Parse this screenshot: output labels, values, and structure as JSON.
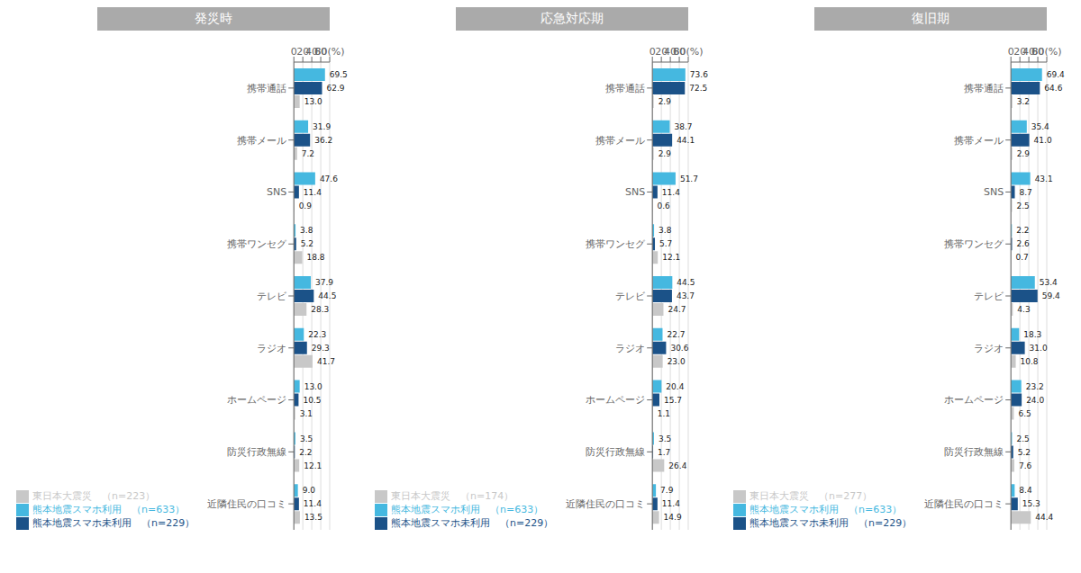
{
  "chart_data": [
    {
      "type": "bar",
      "title": "発災時",
      "orientation": "horizontal",
      "categories": [
        "携帯通話",
        "携帯メール",
        "SNS",
        "携帯ワンセグ",
        "テレビ",
        "ラジオ",
        "ホームページ",
        "防災行政無線",
        "近隣住民の口コミ"
      ],
      "series": [
        {
          "name": "熊本地震スマホ利用　（n=633）",
          "color": "#45B8E0",
          "values": [
            69.5,
            31.9,
            47.6,
            3.8,
            37.9,
            22.3,
            13.0,
            3.5,
            9.0
          ],
          "value_labels": [
            "69.5",
            "31.9",
            "47.6",
            "3.8",
            "37.9",
            "22.3",
            "13.0",
            "3.5",
            "9.0"
          ]
        },
        {
          "name": "熊本地震スマホ未利用　（n=229）",
          "color": "#1B5288",
          "values": [
            62.9,
            36.2,
            11.4,
            5.2,
            44.5,
            29.3,
            10.5,
            2.2,
            11.4
          ],
          "value_labels": [
            "62.9",
            "36.2",
            "11.4",
            "5.2",
            "44.5",
            "29.3",
            "10.5",
            "2.2",
            "11.4"
          ]
        },
        {
          "name": "東日本大震災　（n=223）",
          "color": "#C8C8C8",
          "values": [
            13.0,
            7.2,
            0.9,
            18.8,
            28.3,
            41.7,
            3.1,
            12.1,
            13.5
          ],
          "value_labels": [
            "13.0",
            "7.2",
            "0.9",
            "18.8",
            "28.3",
            "41.7",
            "3.1",
            "12.1",
            "13.5"
          ]
        }
      ],
      "xlim": [
        0,
        80
      ],
      "xticks": [
        0,
        20,
        40,
        60,
        {
          "value": 80,
          "label": "80(%)"
        }
      ],
      "grid": true,
      "data_labels": true,
      "legend": "bottom"
    },
    {
      "type": "bar",
      "title": "応急対応期",
      "orientation": "horizontal",
      "categories": [
        "携帯通話",
        "携帯メール",
        "SNS",
        "携帯ワンセグ",
        "テレビ",
        "ラジオ",
        "ホームページ",
        "防災行政無線",
        "近隣住民の口コミ"
      ],
      "series": [
        {
          "name": "熊本地震スマホ利用　（n=633）",
          "color": "#45B8E0",
          "values": [
            73.6,
            38.7,
            51.7,
            3.8,
            44.5,
            22.7,
            20.4,
            3.5,
            7.9
          ],
          "value_labels": [
            "73.6",
            "38.7",
            "51.7",
            "3.8",
            "44.5",
            "22.7",
            "20.4",
            "3.5",
            "7.9"
          ]
        },
        {
          "name": "熊本地震スマホ未利用　（n=229）",
          "color": "#1B5288",
          "values": [
            72.5,
            44.1,
            11.4,
            5.7,
            43.7,
            30.6,
            15.7,
            1.7,
            11.4
          ],
          "value_labels": [
            "72.5",
            "44.1",
            "11.4",
            "5.7",
            "43.7",
            "30.6",
            "15.7",
            "1.7",
            "11.4"
          ]
        },
        {
          "name": "東日本大震災　（n=174）",
          "color": "#C8C8C8",
          "values": [
            2.9,
            2.9,
            0.6,
            12.1,
            24.7,
            23.0,
            1.1,
            26.4,
            14.9
          ],
          "value_labels": [
            "2.9",
            "2.9",
            "0.6",
            "12.1",
            "24.7",
            "23.0",
            "1.1",
            "26.4",
            "14.9"
          ]
        }
      ],
      "xlim": [
        0,
        80
      ],
      "xticks": [
        0,
        20,
        40,
        60,
        {
          "value": 80,
          "label": "80(%)"
        }
      ],
      "grid": true,
      "data_labels": true,
      "legend": "bottom"
    },
    {
      "type": "bar",
      "title": "復旧期",
      "orientation": "horizontal",
      "categories": [
        "携帯通話",
        "携帯メール",
        "SNS",
        "携帯ワンセグ",
        "テレビ",
        "ラジオ",
        "ホームページ",
        "防災行政無線",
        "近隣住民の口コミ"
      ],
      "series": [
        {
          "name": "熊本地震スマホ利用　（n=633）",
          "color": "#45B8E0",
          "values": [
            69.4,
            35.4,
            43.1,
            2.2,
            53.4,
            18.3,
            23.2,
            2.5,
            8.4
          ],
          "value_labels": [
            "69.4",
            "35.4",
            "43.1",
            "2.2",
            "53.4",
            "18.3",
            "23.2",
            "2.5",
            "8.4"
          ]
        },
        {
          "name": "熊本地震スマホ未利用　（n=229）",
          "color": "#1B5288",
          "values": [
            64.6,
            41.0,
            8.7,
            2.6,
            59.4,
            31.0,
            24.0,
            5.2,
            15.3
          ],
          "value_labels": [
            "64.6",
            "41.0",
            "8.7",
            "2.6",
            "59.4",
            "31.0",
            "24.0",
            "5.2",
            "15.3"
          ]
        },
        {
          "name": "東日本大震災　（n=277）",
          "color": "#C8C8C8",
          "values": [
            3.2,
            2.9,
            2.5,
            0.7,
            4.3,
            10.8,
            6.5,
            7.6,
            44.4
          ],
          "value_labels": [
            "3.2",
            "2.9",
            "2.5",
            "0.7",
            "4.3",
            "10.8",
            "6.5",
            "7.6",
            "44.4"
          ]
        }
      ],
      "xlim": [
        0,
        80
      ],
      "xticks": [
        0,
        20,
        40,
        60,
        {
          "value": 80,
          "label": "80(%)"
        }
      ],
      "grid": true,
      "data_labels": true,
      "legend": "bottom"
    }
  ]
}
